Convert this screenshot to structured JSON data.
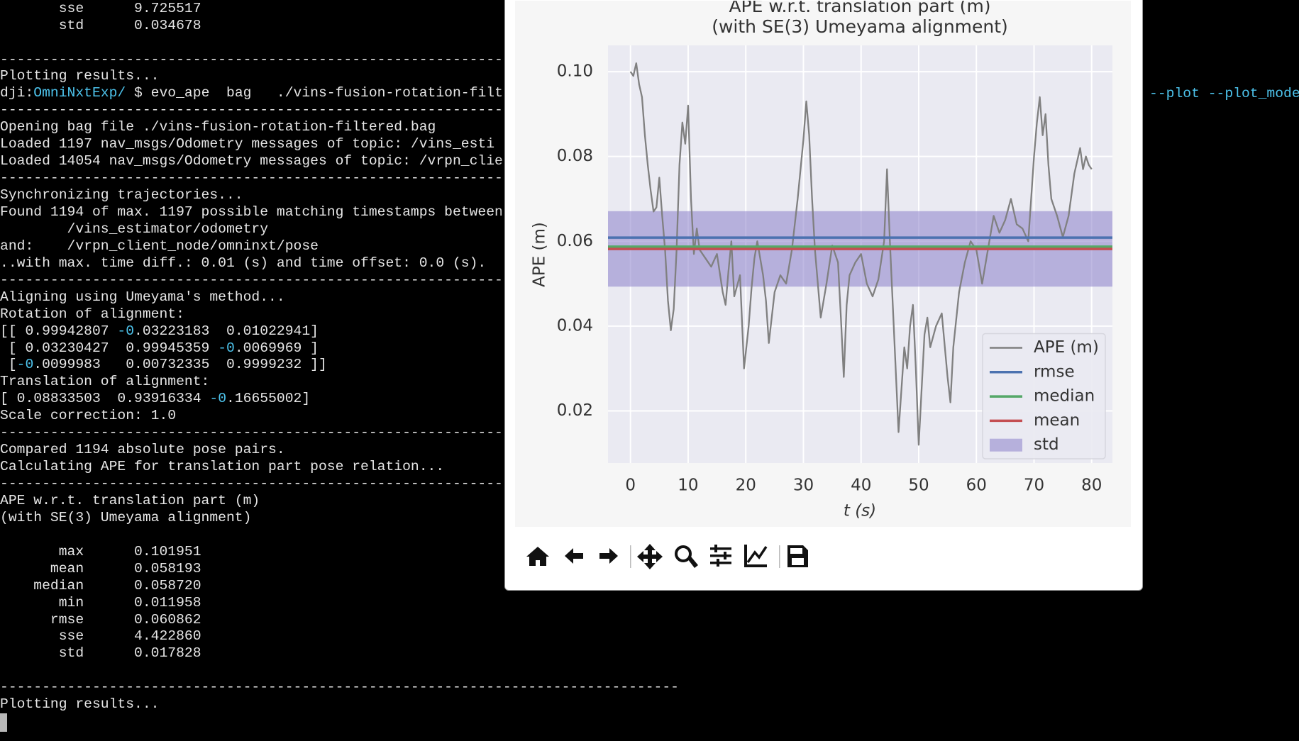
{
  "terminal": {
    "lines": [
      [
        {
          "text": "       sse      9.725517"
        }
      ],
      [
        {
          "text": "       std      0.034678"
        }
      ],
      null,
      [
        {
          "text": "------------------------------------------------------------"
        }
      ],
      [
        {
          "text": "Plotting results..."
        }
      ],
      [
        {
          "text": "dji:"
        },
        {
          "text": "OmniNxtExp/",
          "color": "#4dc3ec"
        },
        {
          "text": " $ evo_ape  bag   ./vins-fusion-rotation-filt"
        }
      ],
      [
        {
          "text": "------------------------------------------------------------"
        }
      ],
      [
        {
          "text": "Opening bag file ./vins-fusion-rotation-filtered.bag"
        }
      ],
      [
        {
          "text": "Loaded 1197 nav_msgs/Odometry messages of topic: /vins_esti"
        }
      ],
      [
        {
          "text": "Loaded 14054 nav_msgs/Odometry messages of topic: /vrpn_clie"
        }
      ],
      [
        {
          "text": "------------------------------------------------------------"
        }
      ],
      [
        {
          "text": "Synchronizing trajectories..."
        }
      ],
      [
        {
          "text": "Found 1194 of max. 1197 possible matching timestamps between"
        }
      ],
      [
        {
          "text": "        /vins_estimator/odometry"
        }
      ],
      [
        {
          "text": "and:    /vrpn_client_node/omninxt/pose"
        }
      ],
      [
        {
          "text": "..with max. time diff.: 0.01 (s) and time offset: 0.0 (s)."
        }
      ],
      [
        {
          "text": "------------------------------------------------------------"
        }
      ],
      [
        {
          "text": "Aligning using Umeyama's method..."
        }
      ],
      [
        {
          "text": "Rotation of alignment:"
        }
      ],
      [
        {
          "text": "[[ 0.99942807 "
        },
        {
          "text": "-0",
          "color": "#4dc3ec"
        },
        {
          "text": ".03223183  0.01022941]"
        }
      ],
      [
        {
          "text": " [ 0.03230427  0.99945359 "
        },
        {
          "text": "-0",
          "color": "#4dc3ec"
        },
        {
          "text": ".0069969 ]"
        }
      ],
      [
        {
          "text": " ["
        },
        {
          "text": "-0",
          "color": "#4dc3ec"
        },
        {
          "text": ".0099983   0.00732335  0.9999232 ]]"
        }
      ],
      [
        {
          "text": "Translation of alignment:"
        }
      ],
      [
        {
          "text": "[ 0.08833503  0.93916334 "
        },
        {
          "text": "-0",
          "color": "#4dc3ec"
        },
        {
          "text": ".16655002]"
        }
      ],
      [
        {
          "text": "Scale correction: 1.0"
        }
      ],
      [
        {
          "text": "------------------------------------------------------------"
        }
      ],
      [
        {
          "text": "Compared 1194 absolute pose pairs."
        }
      ],
      [
        {
          "text": "Calculating APE for translation part pose relation..."
        }
      ],
      [
        {
          "text": "------------------------------------------------------------"
        }
      ],
      [
        {
          "text": "APE w.r.t. translation part (m)"
        }
      ],
      [
        {
          "text": "(with SE(3) Umeyama alignment)"
        }
      ],
      null,
      [
        {
          "text": "       max      0.101951"
        }
      ],
      [
        {
          "text": "      mean      0.058193"
        }
      ],
      [
        {
          "text": "    median      0.058720"
        }
      ],
      [
        {
          "text": "       min      0.011958"
        }
      ],
      [
        {
          "text": "      rmse      0.060862"
        }
      ],
      [
        {
          "text": "       sse      4.422860"
        }
      ],
      [
        {
          "text": "       std      0.017828"
        }
      ],
      null,
      [
        {
          "text": "---------------------------------------------------------------------------------"
        }
      ],
      [
        {
          "text": "Plotting results..."
        }
      ]
    ],
    "command_tail": "--plot --plot_mode"
  },
  "chart_data": {
    "type": "line",
    "title": "APE w.r.t. translation part (m)",
    "subtitle": "(with SE(3) Umeyama alignment)",
    "x_label": "t (s)",
    "y_label": "APE (m)",
    "xlim": [
      -3.9,
      83.6
    ],
    "ylim": [
      0.0077,
      0.1062
    ],
    "xticks": [
      0,
      10,
      20,
      30,
      40,
      50,
      60,
      70,
      80
    ],
    "yticks": [
      0.02,
      0.04,
      0.06,
      0.08,
      {
        "value": 0.1,
        "label": "0.10"
      }
    ],
    "grid": true,
    "legend": "lower right",
    "x": [
      0,
      0.5,
      1,
      1.5,
      2,
      2.5,
      3,
      3.5,
      4,
      4.5,
      5,
      5.5,
      6,
      6.5,
      7,
      7.5,
      8,
      8.5,
      9,
      9.5,
      10,
      10.5,
      11,
      11.5,
      12,
      13,
      14,
      15,
      16,
      16.5,
      17,
      17.5,
      18,
      19,
      19.7,
      20.5,
      21,
      21.5,
      22,
      23,
      23.5,
      24,
      25,
      26,
      27,
      28,
      29,
      30,
      30.5,
      31,
      31.5,
      32,
      33,
      34,
      35,
      36,
      36.5,
      37,
      37.5,
      38,
      39,
      40,
      41,
      42,
      43,
      44,
      44.5,
      45,
      45.5,
      46,
      46.5,
      47,
      47.5,
      48,
      48.5,
      49,
      49.5,
      50,
      50.5,
      51,
      51.5,
      52,
      53,
      54,
      55,
      55.5,
      56,
      57,
      58,
      59,
      60,
      61,
      62,
      63,
      64,
      65,
      66,
      67,
      68,
      69,
      70,
      70.5,
      71,
      71.5,
      72,
      72.5,
      73,
      74,
      75,
      76,
      77,
      78,
      78.5,
      79,
      79.5,
      80
    ],
    "series": [
      {
        "name": "APE (m)",
        "color": "#808080",
        "values": [
          0.1,
          0.099,
          0.102,
          0.097,
          0.094,
          0.085,
          0.078,
          0.072,
          0.067,
          0.068,
          0.075,
          0.066,
          0.058,
          0.046,
          0.039,
          0.044,
          0.058,
          0.078,
          0.088,
          0.083,
          0.092,
          0.07,
          0.057,
          0.063,
          0.058,
          0.056,
          0.054,
          0.057,
          0.048,
          0.045,
          0.053,
          0.06,
          0.047,
          0.052,
          0.03,
          0.04,
          0.049,
          0.056,
          0.06,
          0.052,
          0.046,
          0.036,
          0.048,
          0.052,
          0.05,
          0.058,
          0.07,
          0.084,
          0.093,
          0.085,
          0.07,
          0.058,
          0.042,
          0.05,
          0.059,
          0.055,
          0.042,
          0.028,
          0.045,
          0.052,
          0.055,
          0.057,
          0.05,
          0.047,
          0.051,
          0.06,
          0.077,
          0.06,
          0.045,
          0.03,
          0.015,
          0.025,
          0.035,
          0.03,
          0.04,
          0.045,
          0.03,
          0.012,
          0.025,
          0.038,
          0.042,
          0.035,
          0.04,
          0.043,
          0.028,
          0.022,
          0.035,
          0.048,
          0.055,
          0.06,
          0.058,
          0.05,
          0.058,
          0.066,
          0.062,
          0.065,
          0.07,
          0.064,
          0.063,
          0.06,
          0.08,
          0.088,
          0.094,
          0.085,
          0.09,
          0.078,
          0.07,
          0.066,
          0.061,
          0.066,
          0.076,
          0.082,
          0.077,
          0.08,
          0.078,
          0.077
        ]
      },
      {
        "name": "rmse",
        "color": "#4c72b0",
        "value": 0.060862
      },
      {
        "name": "median",
        "color": "#55a868",
        "value": 0.05872
      },
      {
        "name": "mean",
        "color": "#c44e52",
        "value": 0.058193
      },
      {
        "name": "std",
        "color": "#8b7fcb",
        "range": [
          0.0493,
          0.0671
        ]
      }
    ]
  }
}
